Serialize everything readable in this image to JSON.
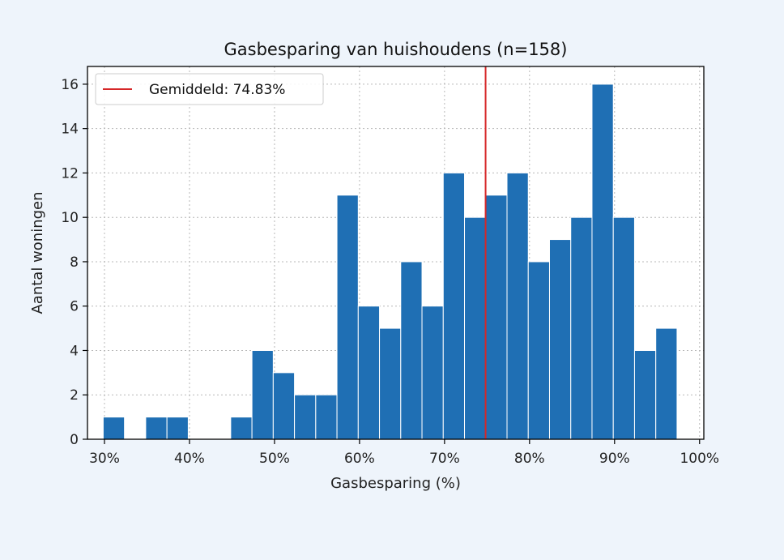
{
  "chart_data": {
    "type": "bar",
    "title": "Gasbesparing van huishoudens (n=158)",
    "xlabel": "Gasbesparing (%)",
    "ylabel": "Aantal woningen",
    "xlim": [
      28,
      100.5
    ],
    "ylim": [
      0,
      16.8
    ],
    "bin_edges": [
      29.85,
      32.35,
      34.85,
      37.35,
      39.85,
      42.35,
      44.85,
      47.35,
      49.85,
      52.35,
      54.85,
      57.35,
      59.85,
      62.35,
      64.85,
      67.35,
      69.85,
      72.35,
      74.85,
      77.35,
      79.85,
      82.35,
      84.85,
      87.35,
      89.85,
      92.35,
      94.85,
      97.35
    ],
    "counts": [
      1,
      0,
      1,
      1,
      0,
      0,
      1,
      4,
      3,
      2,
      2,
      11,
      6,
      5,
      8,
      6,
      12,
      10,
      11,
      12,
      8,
      9,
      10,
      16,
      10,
      4,
      5
    ],
    "x_ticks": [
      30,
      40,
      50,
      60,
      70,
      80,
      90,
      100
    ],
    "x_tick_labels": [
      "30%",
      "40%",
      "50%",
      "60%",
      "70%",
      "80%",
      "90%",
      "100%"
    ],
    "y_ticks": [
      0,
      2,
      4,
      6,
      8,
      10,
      12,
      14,
      16
    ],
    "mean_line": {
      "x": 74.83,
      "label": "Gemiddeld: 74.83%",
      "color": "#d62728"
    },
    "bar_color": "#1f6fb4",
    "grid": true,
    "legend": {
      "position": "top-left",
      "entries": [
        "Gemiddeld: 74.83%"
      ]
    }
  }
}
